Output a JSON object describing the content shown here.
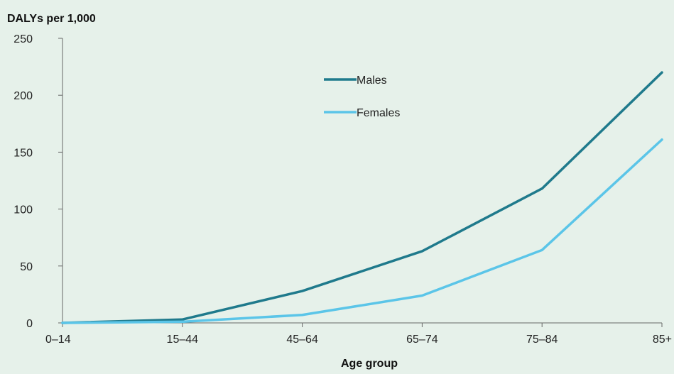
{
  "chart_data": {
    "type": "line",
    "title": "",
    "ylabel": "DALYs per 1,000",
    "xlabel": "Age group",
    "categories": [
      "0–14",
      "15–44",
      "45–64",
      "65–74",
      "75–84",
      "85+"
    ],
    "ylim": [
      0,
      250
    ],
    "yticks": [
      0,
      50,
      100,
      150,
      200,
      250
    ],
    "grid": false,
    "legend_position": "top-center",
    "series": [
      {
        "name": "Males",
        "color": "#1f7a8c",
        "values": [
          0,
          3,
          28,
          63,
          118,
          220
        ]
      },
      {
        "name": "Females",
        "color": "#5bc5e8",
        "values": [
          0,
          1,
          7,
          24,
          64,
          161
        ]
      }
    ]
  }
}
